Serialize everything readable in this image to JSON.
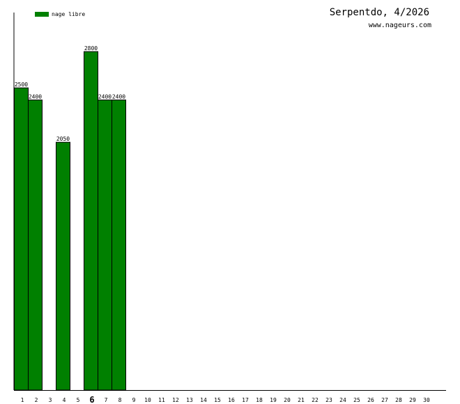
{
  "header": {
    "title": "Serpentdo, 4/2026",
    "subtitle": "www.nageurs.com"
  },
  "colors": {
    "bar": "#008000",
    "bar_stroke": "#000000",
    "axis": "#000000"
  },
  "chart_data": {
    "type": "bar",
    "categories": [
      "1",
      "2",
      "3",
      "4",
      "5",
      "6",
      "7",
      "8",
      "9",
      "10",
      "11",
      "12",
      "13",
      "14",
      "15",
      "16",
      "17",
      "18",
      "19",
      "20",
      "21",
      "22",
      "23",
      "24",
      "25",
      "26",
      "27",
      "28",
      "29",
      "30"
    ],
    "series": [
      {
        "name": "nage libre",
        "values": [
          2500,
          2400,
          null,
          2050,
          null,
          2800,
          2400,
          2400,
          null,
          null,
          null,
          null,
          null,
          null,
          null,
          null,
          null,
          null,
          null,
          null,
          null,
          null,
          null,
          null,
          null,
          null,
          null,
          null,
          null,
          null
        ]
      }
    ],
    "highlighted_category": "6",
    "ylim": [
      0,
      3100
    ],
    "title": "Serpentdo, 4/2026",
    "xlabel": "",
    "ylabel": "",
    "legend": "top-left",
    "grid": false
  }
}
